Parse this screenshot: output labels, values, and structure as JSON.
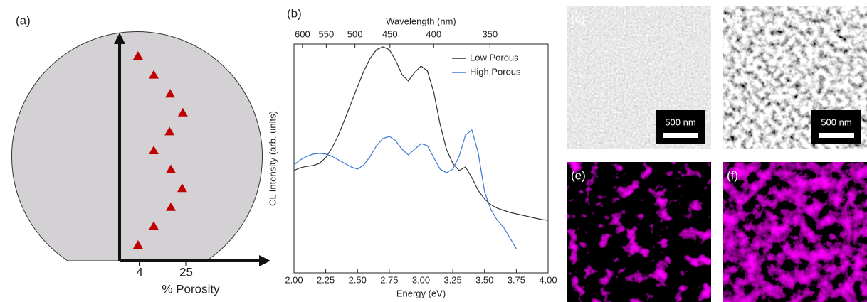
{
  "chart_data": [
    {
      "type": "strip",
      "panel_label": "(a)",
      "xlabel": "% Porosity",
      "xlim": [
        -5,
        63
      ],
      "xticks": [
        4,
        25
      ],
      "color": "#c00000",
      "values": [
        3.3,
        10.4,
        17.8,
        23.5,
        17.5,
        10.4,
        18.1,
        23.2,
        18.1,
        10.4,
        3.3
      ]
    },
    {
      "type": "line",
      "panel_label": "(b)",
      "xlabel": "Energy (eV)",
      "ylabel": "CL Intensity (arb. units)",
      "x2label": "Wavelength (nm)",
      "x": [
        2,
        2.05,
        2.1,
        2.15,
        2.2,
        2.25,
        2.3,
        2.35,
        2.4,
        2.45,
        2.5,
        2.55,
        2.6,
        2.65,
        2.7,
        2.75,
        2.8,
        2.85,
        2.9,
        2.95,
        3,
        3.05,
        3.1,
        3.15,
        3.2,
        3.25,
        3.3,
        3.35,
        3.4,
        3.45,
        3.5,
        3.55,
        3.6,
        3.65,
        3.7,
        3.75,
        3.8,
        3.85,
        3.9,
        3.95,
        4
      ],
      "xlim": [
        2,
        4
      ],
      "xticks": [
        {
          "value": 2,
          "label": "2.00"
        },
        {
          "value": 2.25,
          "label": "2.25"
        },
        {
          "value": 2.5,
          "label": "2.50"
        },
        {
          "value": 2.75,
          "label": "2.75"
        },
        {
          "value": 3,
          "label": "3.00"
        },
        {
          "value": 3.25,
          "label": "3.25"
        },
        {
          "value": 3.5,
          "label": "3.50"
        },
        {
          "value": 3.75,
          "label": "3.75"
        },
        {
          "value": 4,
          "label": "4.00"
        }
      ],
      "x2ticks": [
        600,
        550,
        500,
        450,
        400,
        350
      ],
      "ylim": [
        2.4,
        850000
      ],
      "log_y": true,
      "legend": "upper right",
      "series": [
        {
          "name": "Low Porous",
          "color": "#333333",
          "values": [
            730,
            850,
            920,
            960,
            1080,
            1490,
            2590,
            5300,
            12700,
            31600,
            78900,
            189000,
            385000,
            621000,
            728000,
            621000,
            342000,
            155000,
            108000,
            174000,
            249000,
            189000,
            57400,
            9610,
            2390,
            1080,
            728,
            888,
            490,
            239,
            149,
            108,
            88.8,
            78.8,
            70,
            64.6,
            59.7,
            55.1,
            50.9,
            47,
            45.2
          ]
        },
        {
          "name": "High Porous",
          "color": "#3a7ad1",
          "values": [
            1000,
            1320,
            1610,
            1820,
            1890,
            1820,
            1610,
            1320,
            1080,
            888,
            788,
            1000,
            1610,
            2920,
            4350,
            4900,
            3850,
            2390,
            1740,
            2390,
            3290,
            2920,
            1490,
            788,
            646,
            788,
            1610,
            5300,
            7000,
            1960,
            221,
            82,
            45.2,
            30.4,
            16.7,
            9.2,
            null,
            null,
            null,
            null,
            null
          ]
        }
      ]
    },
    {
      "type": "image",
      "panel_label": "(c)",
      "scale_bar": "500 nm"
    },
    {
      "type": "image",
      "panel_label": "(d)",
      "scale_bar": "500 nm"
    },
    {
      "type": "image",
      "panel_label": "(e)"
    },
    {
      "type": "image",
      "panel_label": "(f)"
    }
  ]
}
